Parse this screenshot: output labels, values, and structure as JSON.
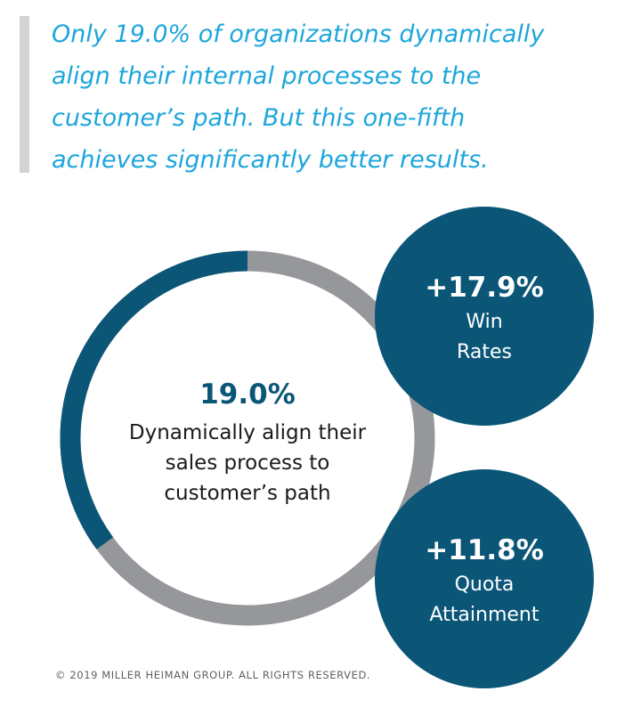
{
  "headline": {
    "lines": [
      "Only 19.0% of organizations dynamically",
      "align their internal processes to the",
      "customer’s path. But this one-fifth",
      "achieves significantly better results."
    ]
  },
  "center": {
    "value": "19.0%",
    "lines": [
      "Dynamically align their",
      "sales process to",
      "customer’s path"
    ]
  },
  "stats": [
    {
      "value": "+17.9%",
      "lines": [
        "Win",
        "Rates"
      ]
    },
    {
      "value": "+11.8%",
      "lines": [
        "Quota",
        "Attainment"
      ]
    }
  ],
  "footer": "© 2019 MILLER HEIMAN GROUP. ALL RIGHTS RESERVED."
}
